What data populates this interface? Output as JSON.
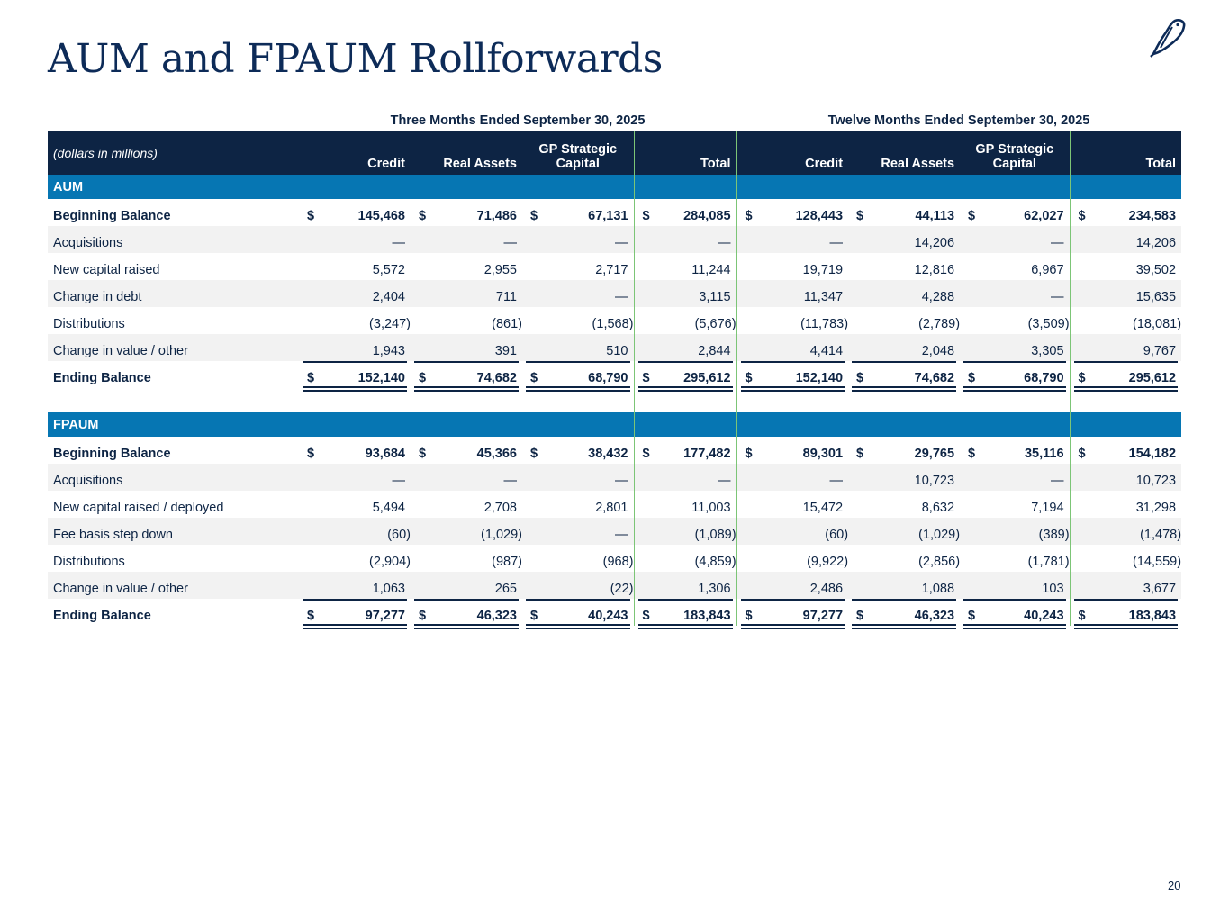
{
  "title": "AUM and FPAUM Rollforwards",
  "page_number": "20",
  "periods": {
    "three_months": "Three Months Ended September 30, 2025",
    "twelve_months": "Twelve Months Ended September 30, 2025"
  },
  "header": {
    "units_label": "(dollars in millions)",
    "columns": [
      "Credit",
      "Real Assets",
      "GP Strategic Capital",
      "Total",
      "Credit",
      "Real Assets",
      "GP Strategic Capital",
      "Total"
    ],
    "gp_line1": "GP Strategic",
    "gp_line2": "Capital"
  },
  "currency_symbol": "$",
  "colors": {
    "navy": "#0d2444",
    "section_blue": "#0676b3",
    "shade": "#f2f2f2",
    "separator_green": "#7cc576"
  },
  "aum": {
    "section_label": "AUM",
    "rows": [
      {
        "label": "Beginning Balance",
        "values": [
          "145,468",
          "71,486",
          "67,131",
          "284,085",
          "128,443",
          "44,113",
          "62,027",
          "234,583"
        ]
      },
      {
        "label": "Acquisitions",
        "values": [
          "—",
          "—",
          "—",
          "—",
          "—",
          "14,206",
          "—",
          "14,206"
        ]
      },
      {
        "label": "New capital raised",
        "values": [
          "5,572",
          "2,955",
          "2,717",
          "11,244",
          "19,719",
          "12,816",
          "6,967",
          "39,502"
        ]
      },
      {
        "label": "Change in debt",
        "values": [
          "2,404",
          "711",
          "—",
          "3,115",
          "11,347",
          "4,288",
          "—",
          "15,635"
        ]
      },
      {
        "label": "Distributions",
        "values": [
          "(3,247)",
          "(861)",
          "(1,568)",
          "(5,676)",
          "(11,783)",
          "(2,789)",
          "(3,509)",
          "(18,081)"
        ]
      },
      {
        "label": "Change in value / other",
        "values": [
          "1,943",
          "391",
          "510",
          "2,844",
          "4,414",
          "2,048",
          "3,305",
          "9,767"
        ]
      },
      {
        "label": "Ending Balance",
        "values": [
          "152,140",
          "74,682",
          "68,790",
          "295,612",
          "152,140",
          "74,682",
          "68,790",
          "295,612"
        ]
      }
    ]
  },
  "fpaum": {
    "section_label": "FPAUM",
    "rows": [
      {
        "label": "Beginning Balance",
        "values": [
          "93,684",
          "45,366",
          "38,432",
          "177,482",
          "89,301",
          "29,765",
          "35,116",
          "154,182"
        ]
      },
      {
        "label": "Acquisitions",
        "values": [
          "—",
          "—",
          "—",
          "—",
          "—",
          "10,723",
          "—",
          "10,723"
        ]
      },
      {
        "label": "New capital raised / deployed",
        "values": [
          "5,494",
          "2,708",
          "2,801",
          "11,003",
          "15,472",
          "8,632",
          "7,194",
          "31,298"
        ]
      },
      {
        "label": "Fee basis step down",
        "values": [
          "(60)",
          "(1,029)",
          "—",
          "(1,089)",
          "(60)",
          "(1,029)",
          "(389)",
          "(1,478)"
        ]
      },
      {
        "label": "Distributions",
        "values": [
          "(2,904)",
          "(987)",
          "(968)",
          "(4,859)",
          "(9,922)",
          "(2,856)",
          "(1,781)",
          "(14,559)"
        ]
      },
      {
        "label": "Change in value / other",
        "values": [
          "1,063",
          "265",
          "(22)",
          "1,306",
          "2,486",
          "1,088",
          "103",
          "3,677"
        ]
      },
      {
        "label": "Ending Balance",
        "values": [
          "97,277",
          "46,323",
          "40,243",
          "183,843",
          "97,277",
          "46,323",
          "40,243",
          "183,843"
        ]
      }
    ]
  }
}
